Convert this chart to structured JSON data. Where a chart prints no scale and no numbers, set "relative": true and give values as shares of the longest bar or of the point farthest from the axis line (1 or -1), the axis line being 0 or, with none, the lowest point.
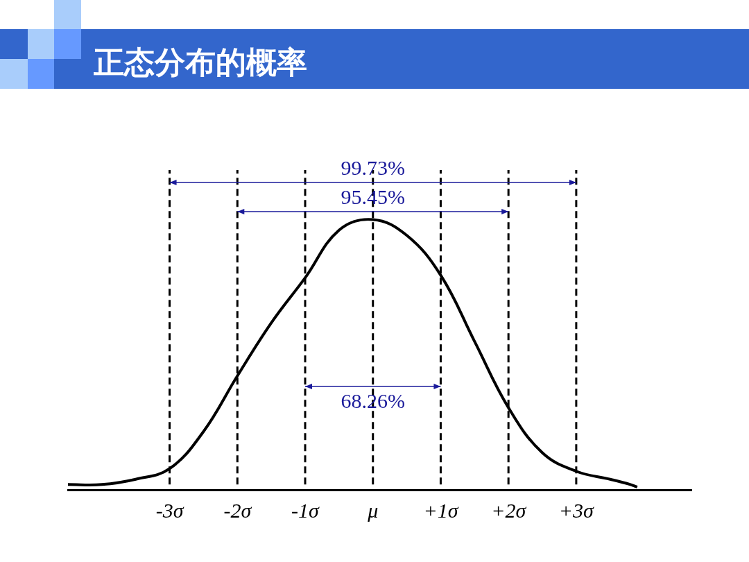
{
  "chart_data": {
    "type": "line",
    "title": "正态分布的概率",
    "relative": true,
    "x": [
      -4.5,
      -4,
      -3.5,
      -3,
      -2.5,
      -2,
      -1.5,
      -1,
      -0.5,
      0,
      0.5,
      1,
      1.5,
      2,
      2.5,
      3,
      3.5,
      3.8,
      3.9
    ],
    "series": [
      {
        "color": "#000000",
        "values": [
          0,
          0,
          0.02,
          0.06,
          0.2,
          0.41,
          0.61,
          0.78,
          0.96,
          1,
          0.94,
          0.79,
          0.54,
          0.29,
          0.12,
          0.05,
          0.02,
          0,
          -0.01
        ]
      }
    ],
    "xlim": [
      -4.5,
      4.7
    ],
    "xticks": [
      {
        "value": -3,
        "label": "-3σ"
      },
      {
        "value": -2,
        "label": "-2σ"
      },
      {
        "value": -1,
        "label": "-1σ"
      },
      {
        "value": 0,
        "label": "μ"
      },
      {
        "value": 1,
        "label": "+1σ"
      },
      {
        "value": 2,
        "label": "+2σ"
      },
      {
        "value": 3,
        "label": "+3σ"
      }
    ],
    "ref_lines": [
      {
        "axis": "x",
        "value": -3,
        "line_style": "dashed"
      },
      {
        "axis": "x",
        "value": -2,
        "line_style": "dashed"
      },
      {
        "axis": "x",
        "value": -1,
        "line_style": "dashed"
      },
      {
        "axis": "x",
        "value": 0,
        "line_style": "dashed"
      },
      {
        "axis": "x",
        "value": 1,
        "line_style": "dashed"
      },
      {
        "axis": "x",
        "value": 2,
        "line_style": "dashed"
      },
      {
        "axis": "x",
        "value": 3,
        "line_style": "dashed"
      }
    ],
    "annotations": [
      "99.73%",
      "95.45%",
      "68.26%"
    ],
    "grid": false,
    "legend": false,
    "marker": "none",
    "line_style": "solid"
  }
}
